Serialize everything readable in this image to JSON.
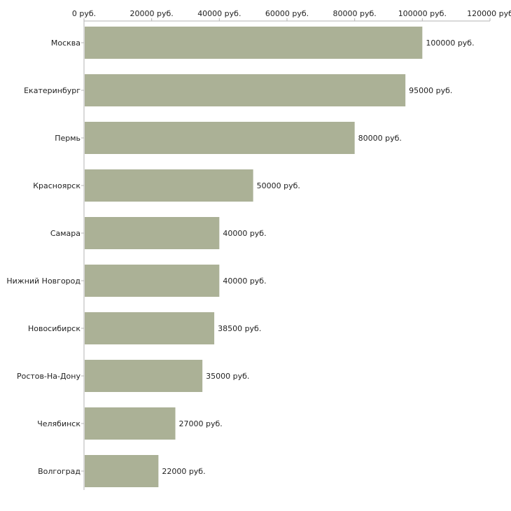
{
  "chart_data": {
    "type": "bar",
    "orientation": "horizontal",
    "title": "",
    "xlabel": "",
    "ylabel": "",
    "xlim": [
      0,
      120000
    ],
    "x_ticks": [
      0,
      20000,
      40000,
      60000,
      80000,
      100000,
      120000
    ],
    "x_tick_labels": [
      "0 руб.",
      "20000 руб.",
      "40000 руб.",
      "60000 руб.",
      "80000 руб.",
      "100000 руб.",
      "120000 руб"
    ],
    "x_axis_position": "top",
    "grid": false,
    "legend": "none",
    "categories": [
      "Москва",
      "Екатеринбург",
      "Пермь",
      "Красноярск",
      "Самара",
      "Нижний Новгород",
      "Новосибирск",
      "Ростов-На-Дону",
      "Челябинск",
      "Волгоград"
    ],
    "values": [
      100000,
      95000,
      80000,
      50000,
      40000,
      40000,
      38500,
      35000,
      27000,
      22000
    ],
    "value_labels": [
      "100000 руб.",
      "95000 руб.",
      "80000 руб.",
      "50000 руб.",
      "40000 руб.",
      "40000 руб.",
      "38500 руб.",
      "35000 руб.",
      "27000 руб.",
      "22000 руб."
    ],
    "bar_color": "#abb196",
    "axis_color": "#b4b4b4",
    "text_color": "#222222"
  }
}
